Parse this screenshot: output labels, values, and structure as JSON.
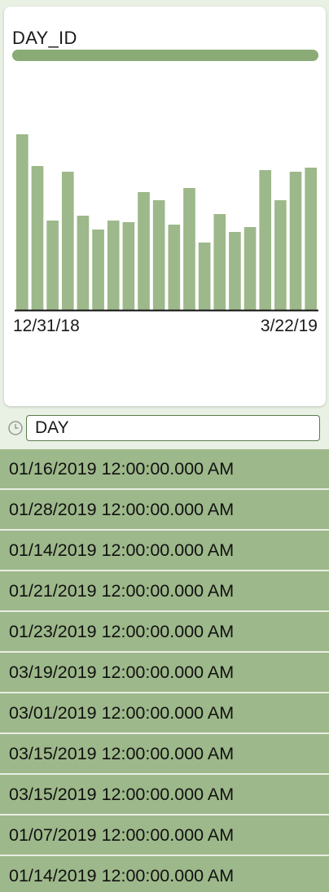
{
  "colors": {
    "bar": "#9db88a",
    "summary": "#8aaa76",
    "axis": "#111111",
    "list_bg": "#9db88a"
  },
  "card": {
    "title": "DAY_ID"
  },
  "chart_data": {
    "type": "bar",
    "title": "DAY_ID",
    "xlabel": "",
    "ylabel": "",
    "x_tick_labels": [
      "12/31/18",
      "3/22/19"
    ],
    "values": [
      216,
      177,
      110,
      170,
      116,
      99,
      110,
      108,
      145,
      135,
      105,
      150,
      83,
      118,
      96,
      102,
      172,
      135,
      170,
      175
    ],
    "ylim": [
      0,
      230
    ],
    "grid": false
  },
  "search": {
    "value": "DAY",
    "icon": "clock-icon"
  },
  "list": {
    "items": [
      "01/16/2019 12:00:00.000 AM",
      "01/28/2019 12:00:00.000 AM",
      "01/14/2019 12:00:00.000 AM",
      "01/21/2019 12:00:00.000 AM",
      "01/23/2019 12:00:00.000 AM",
      "03/19/2019 12:00:00.000 AM",
      "03/01/2019 12:00:00.000 AM",
      "03/15/2019 12:00:00.000 AM",
      "03/15/2019 12:00:00.000 AM",
      "01/07/2019 12:00:00.000 AM",
      "01/14/2019 12:00:00.000 AM"
    ]
  }
}
